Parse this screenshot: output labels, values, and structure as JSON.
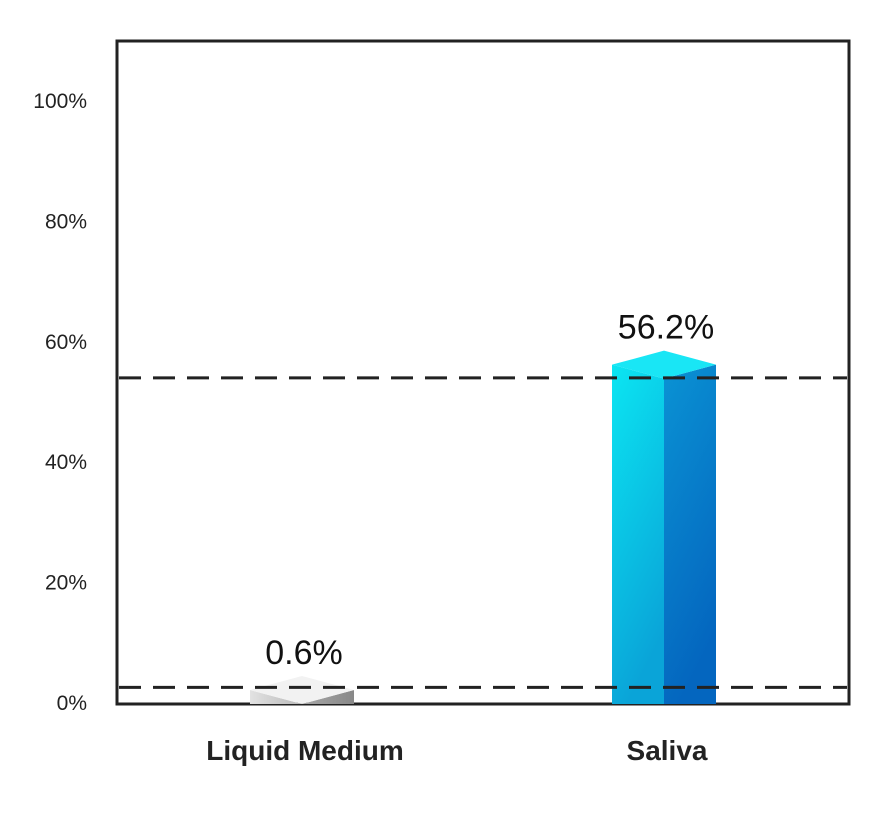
{
  "chart_data": {
    "type": "bar",
    "categories": [
      "Liquid Medium",
      "Saliva"
    ],
    "values": [
      0.6,
      56.2
    ],
    "data_labels": [
      "0.6%",
      "56.2%"
    ],
    "ylim": [
      0,
      110
    ],
    "yticks": [
      0,
      20,
      40,
      60,
      80,
      100
    ],
    "ytick_labels": [
      "0%",
      "20%",
      "40%",
      "60%",
      "80%",
      "100%"
    ],
    "reference_lines": [
      2.6,
      54
    ],
    "grid": false,
    "legend": "none",
    "colors": {
      "liquid_front_light": "#e2e2e2",
      "liquid_front_dark": "#b9b9b9",
      "liquid_side_light": "#a8a8a8",
      "liquid_side_dark": "#888888",
      "liquid_top": "#f2f2f2",
      "saliva_front_light": "#0be6f2",
      "saliva_front_dark": "#0aa4d8",
      "saliva_side_light": "#0a93d4",
      "saliva_side_dark": "#0466bf",
      "saliva_top": "#19e6f5",
      "reference_line": "#222222",
      "axis": "#222222"
    }
  }
}
